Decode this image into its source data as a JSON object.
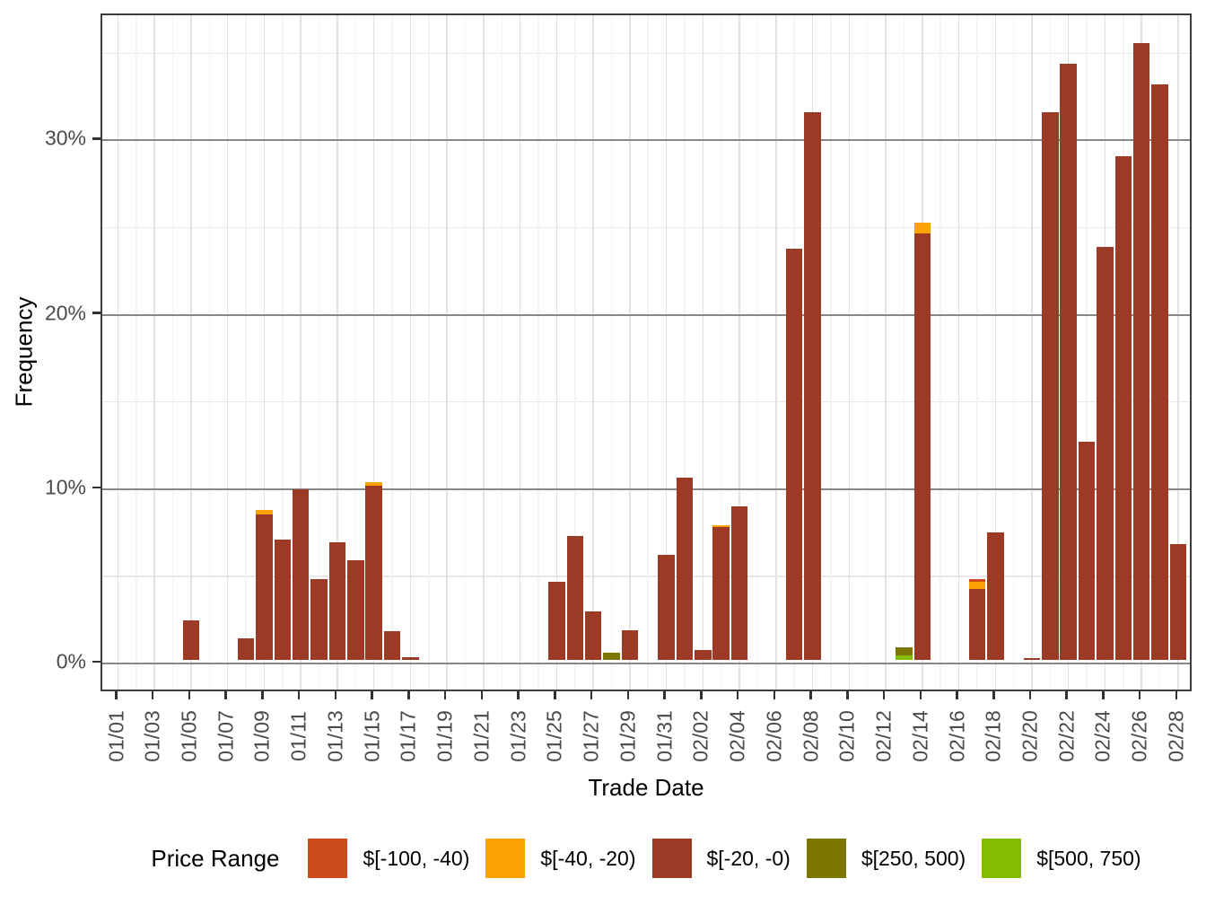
{
  "chart_data": {
    "type": "bar",
    "stacked": true,
    "title": "",
    "xlabel": "Trade Date",
    "ylabel": "Frequency",
    "grid": true,
    "legend_position": "bottom",
    "legend_title": "Price Range",
    "colors": {
      "r1": "#CE4B1D",
      "r2": "#F9A201",
      "r3": "#9C3A26",
      "r4": "#7C7500",
      "r5": "#83BD00"
    },
    "legend_entries": [
      {
        "key": "r1",
        "label": "$[-100, -40)"
      },
      {
        "key": "r2",
        "label": "$[-40, -20)"
      },
      {
        "key": "r3",
        "label": "$[-20, -0)"
      },
      {
        "key": "r4",
        "label": "$[250, 500)"
      },
      {
        "key": "r5",
        "label": "$[500, 750)"
      }
    ],
    "ylim": [
      0,
      37
    ],
    "y_major_ticks": [
      {
        "value": 0,
        "label": "0%"
      },
      {
        "value": 10,
        "label": "10%"
      },
      {
        "value": 20,
        "label": "20%"
      },
      {
        "value": 30,
        "label": "30%"
      }
    ],
    "y_minor_ticks": [
      5,
      15,
      25,
      35
    ],
    "x_tick_labels": [
      "01/01",
      "01/03",
      "01/05",
      "01/07",
      "01/09",
      "01/11",
      "01/13",
      "01/15",
      "01/17",
      "01/19",
      "01/21",
      "01/23",
      "01/25",
      "01/27",
      "01/29",
      "01/31",
      "02/02",
      "02/04",
      "02/06",
      "02/08",
      "02/10",
      "02/12",
      "02/14",
      "02/16",
      "02/18",
      "02/20",
      "02/22",
      "02/24",
      "02/26",
      "02/28"
    ],
    "bars": [
      {
        "date": "01/05",
        "segments": [
          {
            "key": "r3",
            "value": 2.25
          }
        ]
      },
      {
        "date": "01/08",
        "segments": [
          {
            "key": "r3",
            "value": 1.25
          }
        ]
      },
      {
        "date": "01/09",
        "segments": [
          {
            "key": "r3",
            "value": 8.35
          },
          {
            "key": "r2",
            "value": 0.25
          }
        ]
      },
      {
        "date": "01/10",
        "segments": [
          {
            "key": "r3",
            "value": 6.9
          }
        ]
      },
      {
        "date": "01/11",
        "segments": [
          {
            "key": "r3",
            "value": 9.8
          }
        ]
      },
      {
        "date": "01/12",
        "segments": [
          {
            "key": "r3",
            "value": 4.65
          }
        ]
      },
      {
        "date": "01/13",
        "segments": [
          {
            "key": "r3",
            "value": 6.75
          }
        ]
      },
      {
        "date": "01/14",
        "segments": [
          {
            "key": "r3",
            "value": 5.7
          }
        ]
      },
      {
        "date": "01/15",
        "segments": [
          {
            "key": "r3",
            "value": 10.0
          },
          {
            "key": "r2",
            "value": 0.2
          }
        ]
      },
      {
        "date": "01/16",
        "segments": [
          {
            "key": "r3",
            "value": 1.65
          }
        ]
      },
      {
        "date": "01/17",
        "segments": [
          {
            "key": "r3",
            "value": 0.15
          }
        ]
      },
      {
        "date": "01/25",
        "segments": [
          {
            "key": "r3",
            "value": 4.5
          }
        ]
      },
      {
        "date": "01/26",
        "segments": [
          {
            "key": "r3",
            "value": 7.1
          }
        ]
      },
      {
        "date": "01/27",
        "segments": [
          {
            "key": "r3",
            "value": 2.8
          }
        ]
      },
      {
        "date": "01/28",
        "segments": [
          {
            "key": "r4",
            "value": 0.4
          }
        ]
      },
      {
        "date": "01/29",
        "segments": [
          {
            "key": "r3",
            "value": 1.7
          }
        ]
      },
      {
        "date": "01/31",
        "segments": [
          {
            "key": "r3",
            "value": 6.05
          }
        ]
      },
      {
        "date": "02/01",
        "segments": [
          {
            "key": "r3",
            "value": 10.45
          }
        ]
      },
      {
        "date": "02/02",
        "segments": [
          {
            "key": "r3",
            "value": 0.55
          }
        ]
      },
      {
        "date": "02/03",
        "segments": [
          {
            "key": "r3",
            "value": 7.6
          },
          {
            "key": "r2",
            "value": 0.15
          }
        ]
      },
      {
        "date": "02/04",
        "segments": [
          {
            "key": "r3",
            "value": 8.8
          }
        ]
      },
      {
        "date": "02/07",
        "segments": [
          {
            "key": "r3",
            "value": 23.6
          }
        ]
      },
      {
        "date": "02/08",
        "segments": [
          {
            "key": "r3",
            "value": 31.4
          }
        ]
      },
      {
        "date": "02/13",
        "segments": [
          {
            "key": "r5",
            "value": 0.25
          },
          {
            "key": "r4",
            "value": 0.45
          }
        ]
      },
      {
        "date": "02/14",
        "segments": [
          {
            "key": "r3",
            "value": 24.45
          },
          {
            "key": "r2",
            "value": 0.65
          }
        ]
      },
      {
        "date": "02/17",
        "segments": [
          {
            "key": "r3",
            "value": 4.05
          },
          {
            "key": "r2",
            "value": 0.45
          },
          {
            "key": "r1",
            "value": 0.15
          }
        ]
      },
      {
        "date": "02/18",
        "segments": [
          {
            "key": "r3",
            "value": 7.3
          }
        ]
      },
      {
        "date": "02/20",
        "segments": [
          {
            "key": "r3",
            "value": 0.1
          }
        ]
      },
      {
        "date": "02/21",
        "segments": [
          {
            "key": "r3",
            "value": 31.4
          }
        ]
      },
      {
        "date": "02/22",
        "segments": [
          {
            "key": "r3",
            "value": 34.2
          }
        ]
      },
      {
        "date": "02/23",
        "segments": [
          {
            "key": "r3",
            "value": 12.5
          }
        ]
      },
      {
        "date": "02/24",
        "segments": [
          {
            "key": "r3",
            "value": 23.7
          }
        ]
      },
      {
        "date": "02/25",
        "segments": [
          {
            "key": "r3",
            "value": 28.9
          }
        ]
      },
      {
        "date": "02/26",
        "segments": [
          {
            "key": "r3",
            "value": 35.4
          }
        ]
      },
      {
        "date": "02/27",
        "segments": [
          {
            "key": "r3",
            "value": 33.0
          }
        ]
      },
      {
        "date": "02/28",
        "segments": [
          {
            "key": "r3",
            "value": 6.65
          }
        ]
      }
    ]
  }
}
